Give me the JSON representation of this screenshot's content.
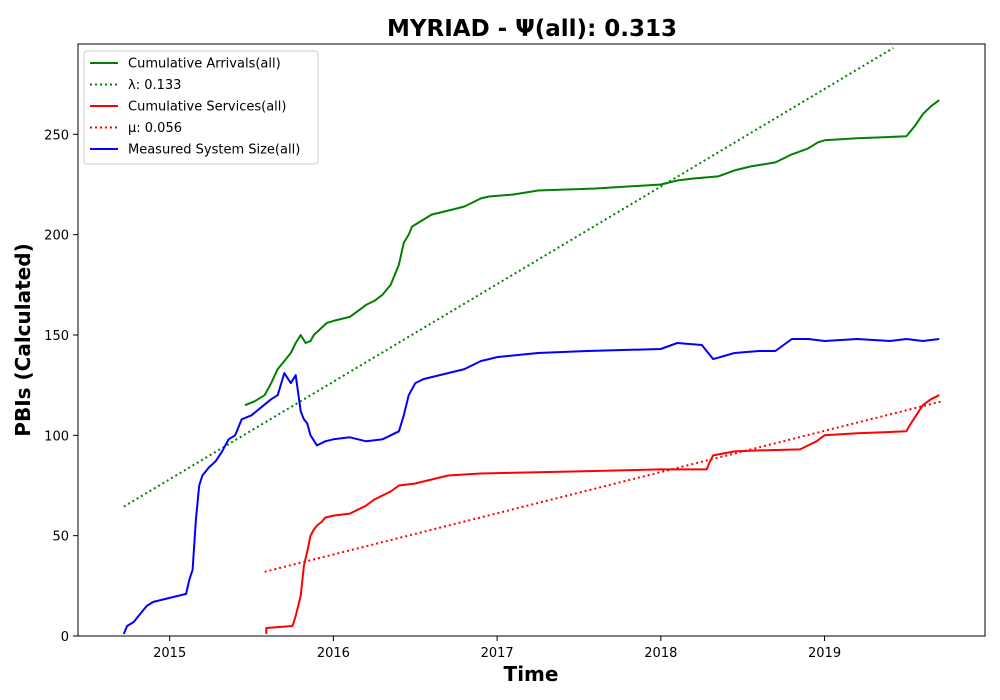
{
  "chart_data": {
    "type": "line",
    "title": "MYRIAD -  Ψ(all): 0.313",
    "xlabel": "Time",
    "ylabel": "PBIs (Calculated)",
    "xlim": [
      2014.44,
      2019.98
    ],
    "ylim": [
      0,
      295
    ],
    "x_ticks": [
      2015,
      2016,
      2017,
      2018,
      2019
    ],
    "x_tick_labels": [
      "2015",
      "2016",
      "2017",
      "2018",
      "2019"
    ],
    "y_ticks": [
      0,
      50,
      100,
      150,
      200,
      250
    ],
    "y_tick_labels": [
      "0",
      "50",
      "100",
      "150",
      "200",
      "250"
    ],
    "grid": false,
    "legend_position": "upper-left",
    "series": [
      {
        "name": "Cumulative Arrivals(all)",
        "color": "#008000",
        "style": "solid",
        "x": [
          2015.46,
          2015.52,
          2015.58,
          2015.62,
          2015.66,
          2015.7,
          2015.74,
          2015.77,
          2015.8,
          2015.83,
          2015.86,
          2015.88,
          2015.92,
          2015.96,
          2016.0,
          2016.05,
          2016.1,
          2016.15,
          2016.2,
          2016.25,
          2016.3,
          2016.35,
          2016.4,
          2016.43,
          2016.46,
          2016.48,
          2016.52,
          2016.56,
          2016.6,
          2016.65,
          2016.7,
          2016.75,
          2016.8,
          2016.85,
          2016.9,
          2016.95,
          2017.1,
          2017.25,
          2017.6,
          2018.0,
          2018.1,
          2018.2,
          2018.35,
          2018.45,
          2018.55,
          2018.7,
          2018.8,
          2018.9,
          2018.96,
          2019.0,
          2019.2,
          2019.5,
          2019.55,
          2019.6,
          2019.65,
          2019.7
        ],
        "y": [
          115,
          117,
          120,
          126,
          133,
          137,
          141,
          146,
          150,
          146,
          147,
          150,
          153,
          156,
          157,
          158,
          159,
          162,
          165,
          167,
          170,
          175,
          185,
          196,
          200,
          204,
          206,
          208,
          210,
          211,
          212,
          213,
          214,
          216,
          218,
          219,
          220,
          222,
          223,
          225,
          227,
          228,
          229,
          232,
          234,
          236,
          240,
          243,
          246,
          247,
          248,
          249,
          254,
          260,
          264,
          267
        ]
      },
      {
        "name": "λ: 0.133",
        "color": "#008000",
        "style": "dotted",
        "x": [
          2014.72,
          2019.42
        ],
        "y": [
          64.5,
          293
        ]
      },
      {
        "name": "Cumulative Services(all)",
        "color": "#ff0000",
        "style": "solid",
        "x": [
          2015.59,
          2015.59,
          2015.75,
          2015.77,
          2015.8,
          2015.82,
          2015.84,
          2015.86,
          2015.88,
          2015.9,
          2015.93,
          2015.95,
          2016.0,
          2016.1,
          2016.2,
          2016.25,
          2016.3,
          2016.35,
          2016.4,
          2016.5,
          2016.55,
          2016.6,
          2016.7,
          2016.9,
          2017.5,
          2018.0,
          2018.28,
          2018.3,
          2018.32,
          2018.45,
          2018.6,
          2018.85,
          2018.9,
          2018.95,
          2019.0,
          2019.2,
          2019.5,
          2019.52,
          2019.56,
          2019.6,
          2019.65,
          2019.7
        ],
        "y": [
          1,
          4,
          5,
          10,
          20,
          35,
          42,
          50,
          53,
          55,
          57,
          59,
          60,
          61,
          65,
          68,
          70,
          72,
          75,
          76,
          77,
          78,
          80,
          81,
          82,
          83,
          83,
          87,
          90,
          92,
          92.5,
          93,
          95,
          97,
          100,
          101,
          102,
          105,
          110,
          115,
          118,
          120
        ]
      },
      {
        "name": "μ: 0.056",
        "color": "#ff0000",
        "style": "dotted",
        "x": [
          2015.58,
          2019.72
        ],
        "y": [
          32,
          117
        ]
      },
      {
        "name": "Measured System Size(all)",
        "color": "#0000ff",
        "style": "solid",
        "x": [
          2014.72,
          2014.74,
          2014.78,
          2014.82,
          2014.86,
          2014.9,
          2014.95,
          2015.0,
          2015.05,
          2015.1,
          2015.12,
          2015.14,
          2015.16,
          2015.18,
          2015.2,
          2015.24,
          2015.28,
          2015.32,
          2015.36,
          2015.4,
          2015.44,
          2015.5,
          2015.56,
          2015.62,
          2015.66,
          2015.7,
          2015.74,
          2015.77,
          2015.8,
          2015.82,
          2015.84,
          2015.86,
          2015.9,
          2015.95,
          2016.0,
          2016.1,
          2016.2,
          2016.3,
          2016.4,
          2016.43,
          2016.46,
          2016.5,
          2016.55,
          2016.6,
          2016.7,
          2016.8,
          2016.9,
          2017.0,
          2017.25,
          2017.55,
          2018.0,
          2018.1,
          2018.25,
          2018.32,
          2018.45,
          2018.6,
          2018.7,
          2018.8,
          2018.9,
          2019.0,
          2019.2,
          2019.4,
          2019.5,
          2019.6,
          2019.7
        ],
        "y": [
          1,
          5,
          7,
          11,
          15,
          17,
          18,
          19,
          20,
          21,
          28,
          33,
          58,
          75,
          80,
          84,
          87,
          92,
          98,
          100,
          108,
          110,
          114,
          118,
          120,
          131,
          126,
          130,
          112,
          108,
          106,
          100,
          95,
          97,
          98,
          99,
          97,
          98,
          102,
          110,
          120,
          126,
          128,
          129,
          131,
          133,
          137,
          139,
          141,
          142,
          143,
          146,
          145,
          138,
          141,
          142,
          142,
          148,
          148,
          147,
          148,
          147,
          148,
          147,
          148
        ]
      }
    ]
  }
}
